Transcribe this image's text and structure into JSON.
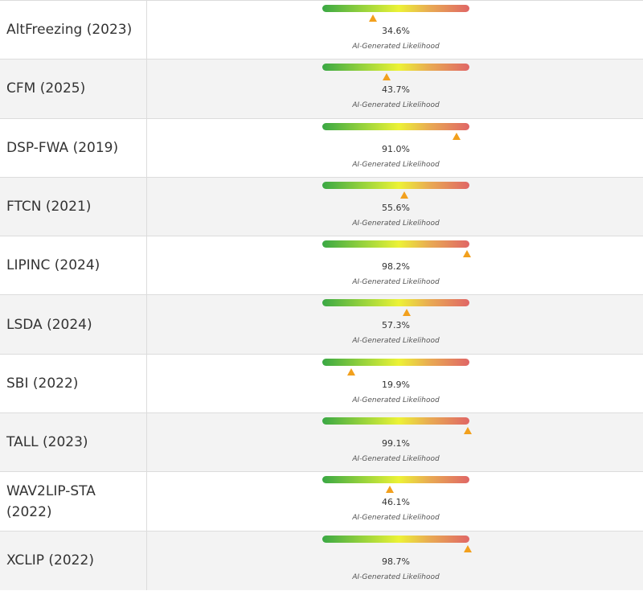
{
  "caption_text": "AI-Generated Likelihood",
  "colors": {
    "marker": "#f2a01d",
    "gradient_start": "#3aa844",
    "gradient_mid": "#ecf236",
    "gradient_end": "#e06666",
    "row_shaded": "#f3f3f3"
  },
  "rows": [
    {
      "model": "AltFreezing (2023)",
      "percent": "34.6%",
      "likelihood": 0.346
    },
    {
      "model": "CFM (2025)",
      "percent": "43.7%",
      "likelihood": 0.437
    },
    {
      "model": "DSP-FWA (2019)",
      "percent": "91.0%",
      "likelihood": 0.91
    },
    {
      "model": "FTCN (2021)",
      "percent": "55.6%",
      "likelihood": 0.556
    },
    {
      "model": "LIPINC (2024)",
      "percent": "98.2%",
      "likelihood": 0.982
    },
    {
      "model": "LSDA (2024)",
      "percent": "57.3%",
      "likelihood": 0.573
    },
    {
      "model": "SBI (2022)",
      "percent": "19.9%",
      "likelihood": 0.199
    },
    {
      "model": "TALL (2023)",
      "percent": "99.1%",
      "likelihood": 0.991
    },
    {
      "model": "WAV2LIP-STA (2022)",
      "percent": "46.1%",
      "likelihood": 0.461
    },
    {
      "model": "XCLIP (2022)",
      "percent": "98.7%",
      "likelihood": 0.987
    }
  ]
}
